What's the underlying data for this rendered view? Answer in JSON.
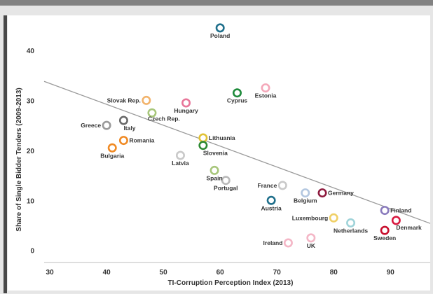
{
  "chart_data": {
    "type": "scatter",
    "xlabel": "TI-Corruption Perception Index (2013)",
    "ylabel": "Share of Single Bidder Tenders (2009-2013)",
    "xlim": [
      29,
      97
    ],
    "ylim": [
      -2,
      47
    ],
    "xticks": [
      30,
      40,
      50,
      60,
      70,
      80,
      90
    ],
    "yticks": [
      0,
      10,
      20,
      30,
      40
    ],
    "grid": false,
    "trend_line": {
      "from": [
        29,
        33.8
      ],
      "to": [
        97,
        5.4
      ]
    },
    "points": [
      {
        "label": "Poland",
        "x": 60,
        "y": 44.5,
        "color": "#1f6f8b",
        "label_dx": 0,
        "label_dy": 14,
        "anchor": "middle"
      },
      {
        "label": "Slovak Rep.",
        "x": 47,
        "y": 30,
        "color": "#f2b36b",
        "label_dx": -8,
        "label_dy": 3,
        "anchor": "end"
      },
      {
        "label": "Hungary",
        "x": 54,
        "y": 29.5,
        "color": "#e8779a",
        "label_dx": 0,
        "label_dy": 14,
        "anchor": "middle"
      },
      {
        "label": "Cyprus",
        "x": 63,
        "y": 31.5,
        "color": "#1d8a3a",
        "label_dx": 0,
        "label_dy": 14,
        "anchor": "middle"
      },
      {
        "label": "Estonia",
        "x": 68,
        "y": 32.5,
        "color": "#f4a7b9",
        "label_dx": 0,
        "label_dy": 14,
        "anchor": "middle"
      },
      {
        "label": "Greece",
        "x": 40,
        "y": 25,
        "color": "#9a9a9a",
        "label_dx": -8,
        "label_dy": 3,
        "anchor": "end"
      },
      {
        "label": "Czech Rep.",
        "x": 48,
        "y": 27.5,
        "color": "#a7c67a",
        "label_dx": -6,
        "label_dy": 11,
        "anchor": "start"
      },
      {
        "label": "Italy",
        "x": 43,
        "y": 26,
        "color": "#6a6a6a",
        "label_dx": 0,
        "label_dy": 14,
        "anchor": "start"
      },
      {
        "label": "Romania",
        "x": 43,
        "y": 22,
        "color": "#f08a24",
        "label_dx": 8,
        "label_dy": 3,
        "anchor": "start"
      },
      {
        "label": "Bulgaria",
        "x": 41,
        "y": 20.5,
        "color": "#f08a24",
        "label_dx": 0,
        "label_dy": 14,
        "anchor": "middle"
      },
      {
        "label": "Latvia",
        "x": 53,
        "y": 19,
        "color": "#c9c9c9",
        "label_dx": 0,
        "label_dy": 14,
        "anchor": "middle"
      },
      {
        "label": "Lithuania",
        "x": 57,
        "y": 22.5,
        "color": "#e1c234",
        "label_dx": 8,
        "label_dy": 3,
        "anchor": "start"
      },
      {
        "label": "Slovenia",
        "x": 57,
        "y": 21,
        "color": "#2f8a33",
        "label_dx": 0,
        "label_dy": 14,
        "anchor": "start"
      },
      {
        "label": "Spain",
        "x": 59,
        "y": 16,
        "color": "#a7c67a",
        "label_dx": 0,
        "label_dy": 14,
        "anchor": "middle"
      },
      {
        "label": "Portugal",
        "x": 61,
        "y": 14,
        "color": "#b9b9b9",
        "label_dx": 0,
        "label_dy": 14,
        "anchor": "middle"
      },
      {
        "label": "France",
        "x": 71,
        "y": 13,
        "color": "#c9c9c9",
        "label_dx": -8,
        "label_dy": 3,
        "anchor": "end"
      },
      {
        "label": "Belgium",
        "x": 75,
        "y": 11.5,
        "color": "#b3c7e0",
        "label_dx": 0,
        "label_dy": 14,
        "anchor": "middle"
      },
      {
        "label": "Germany",
        "x": 78,
        "y": 11.5,
        "color": "#8e1a3e",
        "label_dx": 8,
        "label_dy": 3,
        "anchor": "start"
      },
      {
        "label": "Austria",
        "x": 69,
        "y": 10,
        "color": "#1f6f8b",
        "label_dx": 0,
        "label_dy": 14,
        "anchor": "middle"
      },
      {
        "label": "Luxembourg",
        "x": 80,
        "y": 6.5,
        "color": "#f0d066",
        "label_dx": -8,
        "label_dy": 3,
        "anchor": "end"
      },
      {
        "label": "Netherlands",
        "x": 83,
        "y": 5.5,
        "color": "#9fd3d9",
        "label_dx": 0,
        "label_dy": 14,
        "anchor": "middle"
      },
      {
        "label": "Finland",
        "x": 89,
        "y": 8,
        "color": "#8a7bbd",
        "label_dx": 8,
        "label_dy": 3,
        "anchor": "start"
      },
      {
        "label": "Denmark",
        "x": 91,
        "y": 6,
        "color": "#d7193f",
        "label_dx": 0,
        "label_dy": 13,
        "anchor": "start"
      },
      {
        "label": "Sweden",
        "x": 89,
        "y": 4,
        "color": "#c8102e",
        "label_dx": 0,
        "label_dy": 14,
        "anchor": "middle"
      },
      {
        "label": "Ireland",
        "x": 72,
        "y": 1.5,
        "color": "#f4b6c6",
        "label_dx": -8,
        "label_dy": 3,
        "anchor": "end"
      },
      {
        "label": "UK",
        "x": 76,
        "y": 2.5,
        "color": "#f4b6c6",
        "label_dx": 0,
        "label_dy": 14,
        "anchor": "middle"
      }
    ]
  }
}
